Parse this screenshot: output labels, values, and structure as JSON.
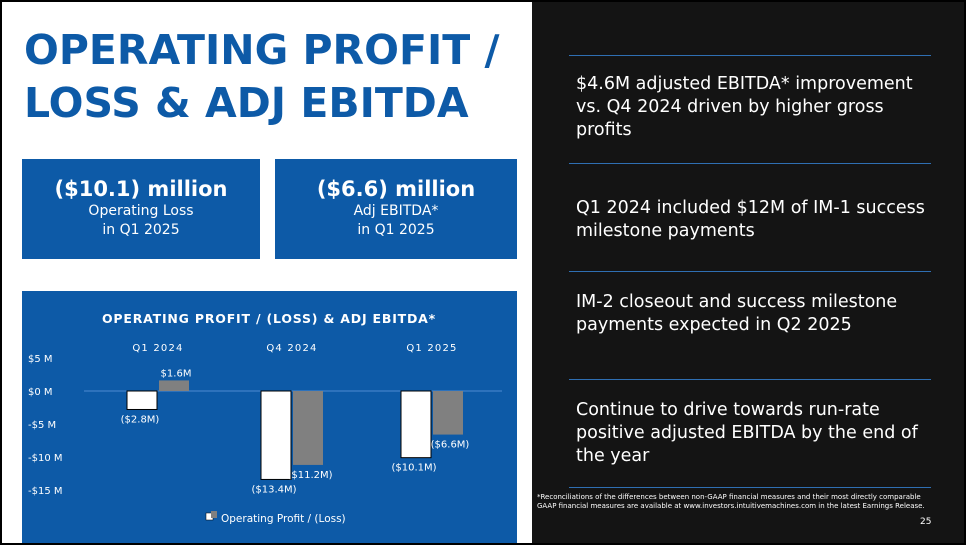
{
  "slide": {
    "title_line1": "OPERATING PROFIT /",
    "title_line2": "LOSS & ADJ EBITDA",
    "colors": {
      "brand_blue": "#0d5aa7",
      "dark_panel": "#141414",
      "rule": "#2f6fb3"
    },
    "stats": [
      {
        "value": "($10.1) million",
        "label_line1": "Operating Loss",
        "label_line2": "in Q1 2025"
      },
      {
        "value": "($6.6) million",
        "label_line1": "Adj EBITDA*",
        "label_line2": "in Q1 2025"
      }
    ],
    "points": [
      "$4.6M adjusted EBITDA* improvement vs. Q4 2024 driven by higher gross profits",
      "Q1 2024 included $12M of IM-1 success milestone payments",
      "IM-2 closeout and success milestone payments expected in Q2 2025",
      "Continue to drive towards run-rate positive adjusted EBITDA by the end of the year"
    ],
    "footnote": "*Reconciliations of the differences between non-GAAP financial measures and their most directly comparable GAAP financial measures are available at www.investors.intuitivemachines.com in the latest Earnings Release.",
    "page_number": "25"
  },
  "chart_data": {
    "type": "bar",
    "title": "OPERATING PROFIT / (LOSS) & ADJ EBITDA*",
    "categories": [
      "Q1 2024",
      "Q4 2024",
      "Q1 2025"
    ],
    "series": [
      {
        "name": "Operating Profit / (Loss)",
        "color": "#ffffff",
        "values": [
          -2.8,
          -13.4,
          -10.1
        ],
        "labels": [
          "($2.8M)",
          "($13.4M)",
          "($10.1M)"
        ]
      },
      {
        "name": "",
        "color": "#808080",
        "values": [
          1.6,
          -11.2,
          -6.6
        ],
        "labels": [
          "$1.6M",
          "($11.2M)",
          "($6.6M)"
        ]
      }
    ],
    "yticks": [
      5,
      0,
      -5,
      -10,
      -15
    ],
    "ytick_labels": [
      "$5 M",
      "$0 M",
      "-$5 M",
      "-$10 M",
      "-$15 M"
    ],
    "ylim": [
      -15,
      5
    ],
    "grid": false,
    "legend_position": "bottom",
    "xlabel": "",
    "ylabel": ""
  }
}
